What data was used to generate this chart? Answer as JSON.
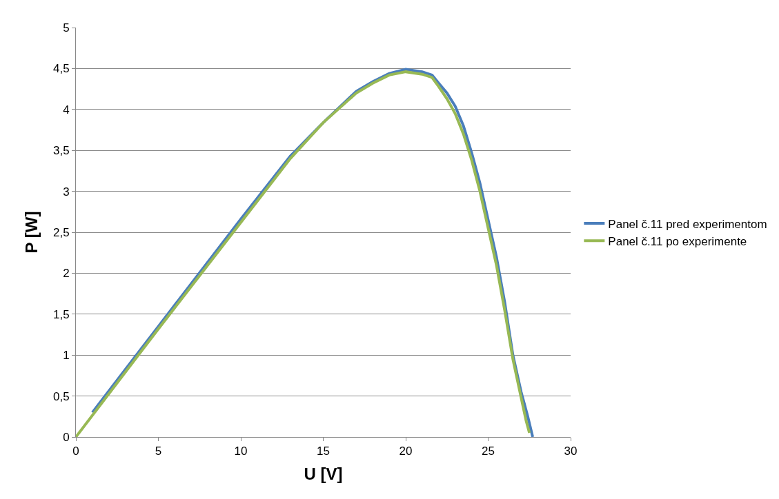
{
  "chart_data": {
    "type": "line",
    "xlabel": "U [V]",
    "ylabel": "P [W]",
    "xlim": [
      0,
      30
    ],
    "xticks": [
      0,
      5,
      10,
      15,
      20,
      25,
      30
    ],
    "ylim": [
      0,
      5
    ],
    "yticks": [
      0,
      {
        "value": 0.5,
        "label": "0,5"
      },
      1,
      {
        "value": 1.5,
        "label": "1,5"
      },
      2,
      {
        "value": 2.5,
        "label": "2,5"
      },
      3,
      {
        "value": 3.5,
        "label": "3,5"
      },
      4,
      {
        "value": 4.5,
        "label": "4,5"
      },
      5
    ],
    "grid": "y",
    "legend": "right",
    "marker": "none",
    "line_style": "solid",
    "series": [
      {
        "name": "Panel č.11 pred experimentom",
        "color": "#4a7ebb",
        "x": [
          1,
          5,
          10,
          13,
          15,
          17,
          18,
          19,
          20,
          21,
          21.6,
          22,
          22.5,
          23,
          23.5,
          24,
          24.5,
          25,
          25.5,
          26,
          26.5,
          27,
          27.4,
          27.7
        ],
        "values": [
          0.3,
          1.35,
          2.66,
          3.43,
          3.84,
          4.22,
          4.34,
          4.44,
          4.49,
          4.46,
          4.42,
          4.32,
          4.2,
          4.04,
          3.8,
          3.47,
          3.1,
          2.65,
          2.2,
          1.65,
          1.0,
          0.55,
          0.25,
          0
        ]
      },
      {
        "name": "Panel č.11 po experimente",
        "color": "#98b954",
        "x": [
          0,
          5,
          10,
          13,
          15,
          17,
          18,
          19,
          20,
          21,
          21.6,
          22,
          22.5,
          23,
          23.5,
          24,
          24.5,
          25,
          25.5,
          26,
          26.5,
          27,
          27.3,
          27.5
        ],
        "values": [
          0,
          1.32,
          2.62,
          3.4,
          3.84,
          4.2,
          4.32,
          4.42,
          4.46,
          4.43,
          4.39,
          4.28,
          4.13,
          3.95,
          3.7,
          3.38,
          3.0,
          2.55,
          2.1,
          1.55,
          0.95,
          0.48,
          0.2,
          0.05
        ]
      }
    ]
  }
}
